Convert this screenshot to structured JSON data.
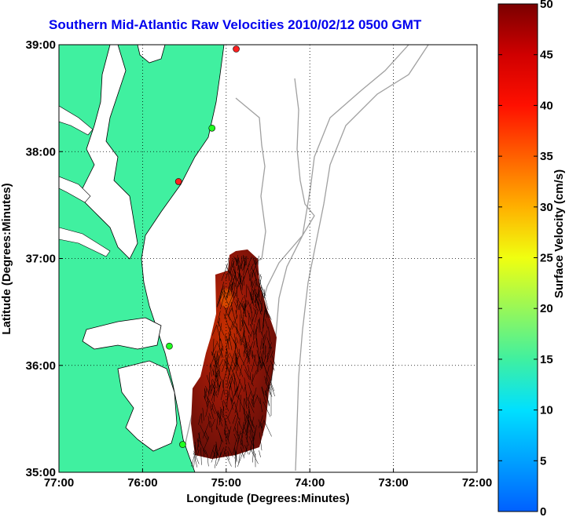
{
  "title": "Southern Mid-Atlantic Raw Velocities 2010/02/12 0500 GMT",
  "map": {
    "xlabel": "Longitude (Degrees:Minutes)",
    "ylabel": "Latitude (Degrees:Minutes)",
    "lon_range": [
      -77,
      -72
    ],
    "lat_range": [
      35,
      39
    ],
    "x_ticks": [
      "77:00",
      "76:00",
      "75:00",
      "74:00",
      "73:00",
      "72:00"
    ],
    "y_ticks": [
      "35:00",
      "36:00",
      "37:00",
      "38:00",
      "39:00"
    ],
    "grid": "dotted",
    "land_color": "#40f0a0",
    "site_markers": [
      {
        "lon": -74.88,
        "lat": 38.96,
        "color": "#ff2020"
      },
      {
        "lon": -75.17,
        "lat": 38.22,
        "color": "#20ff20"
      },
      {
        "lon": -75.57,
        "lat": 37.72,
        "color": "#ff2020"
      },
      {
        "lon": -75.68,
        "lat": 36.18,
        "color": "#20ff20"
      },
      {
        "lon": -75.52,
        "lat": 35.26,
        "color": "#20ff20"
      }
    ]
  },
  "colorbar": {
    "label": "Surface Velocity (cm/s)",
    "min": 0,
    "max": 50,
    "ticks": [
      "0",
      "5",
      "10",
      "15",
      "20",
      "25",
      "30",
      "35",
      "40",
      "45",
      "50"
    ],
    "colormap": "jet"
  }
}
